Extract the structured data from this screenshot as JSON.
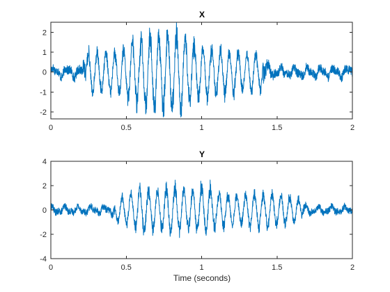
{
  "chart_data": [
    {
      "type": "line",
      "title": "X",
      "xlabel": "",
      "ylabel": "",
      "xlim": [
        0,
        2
      ],
      "ylim": [
        -2.35,
        2.5
      ],
      "xticks": [
        "0",
        "0.5",
        "1",
        "1.5",
        "2"
      ],
      "yticks": [
        "-2",
        "-1",
        "0",
        "1",
        "2"
      ],
      "grid": false,
      "line_color": "#0072BD",
      "series": [
        {
          "x": [
            0,
            0.1,
            0.2,
            0.25,
            0.3,
            0.35,
            0.4,
            0.45,
            0.5,
            0.55,
            0.6,
            0.65,
            0.7,
            0.75,
            0.8,
            0.85,
            0.9,
            0.95,
            1.0,
            1.05,
            1.1,
            1.15,
            1.2,
            1.25,
            1.3,
            1.35,
            1.4,
            1.45,
            1.5,
            1.6,
            1.7,
            1.8,
            1.9,
            2.0
          ],
          "y_envelope": [
            0.5,
            0.5,
            0.55,
            1.35,
            1.3,
            1.3,
            1.25,
            1.3,
            1.5,
            2.0,
            2.1,
            2.3,
            2.5,
            2.3,
            2.5,
            2.2,
            2.1,
            1.8,
            1.7,
            1.6,
            1.5,
            1.4,
            1.35,
            1.3,
            1.2,
            1.15,
            1.1,
            0.6,
            0.5,
            0.5,
            0.5,
            0.5,
            0.5,
            0.5
          ]
        }
      ]
    },
    {
      "type": "line",
      "title": "Y",
      "xlabel": "Time (seconds)",
      "ylabel": "",
      "xlim": [
        0,
        2
      ],
      "ylim": [
        -4,
        4
      ],
      "xticks": [
        "0",
        "0.5",
        "1",
        "1.5",
        "2"
      ],
      "yticks": [
        "-4",
        "-2",
        "0",
        "2",
        "4"
      ],
      "grid": false,
      "line_color": "#0072BD",
      "series": [
        {
          "x": [
            0,
            0.1,
            0.2,
            0.3,
            0.4,
            0.45,
            0.5,
            0.55,
            0.6,
            0.65,
            0.7,
            0.75,
            0.8,
            0.85,
            0.9,
            0.95,
            1.0,
            1.05,
            1.1,
            1.15,
            1.2,
            1.25,
            1.3,
            1.35,
            1.4,
            1.45,
            1.5,
            1.55,
            1.6,
            1.65,
            1.7,
            1.8,
            1.9,
            2.0
          ],
          "y_envelope": [
            0.6,
            0.6,
            0.6,
            0.6,
            0.65,
            1.4,
            1.5,
            1.7,
            2.6,
            2.2,
            2.0,
            2.2,
            2.6,
            2.2,
            2.0,
            2.1,
            2.5,
            2.3,
            1.9,
            1.7,
            1.6,
            1.5,
            1.6,
            1.8,
            1.9,
            1.8,
            1.7,
            1.6,
            1.3,
            1.2,
            0.6,
            0.6,
            0.6,
            0.6
          ]
        }
      ]
    }
  ]
}
